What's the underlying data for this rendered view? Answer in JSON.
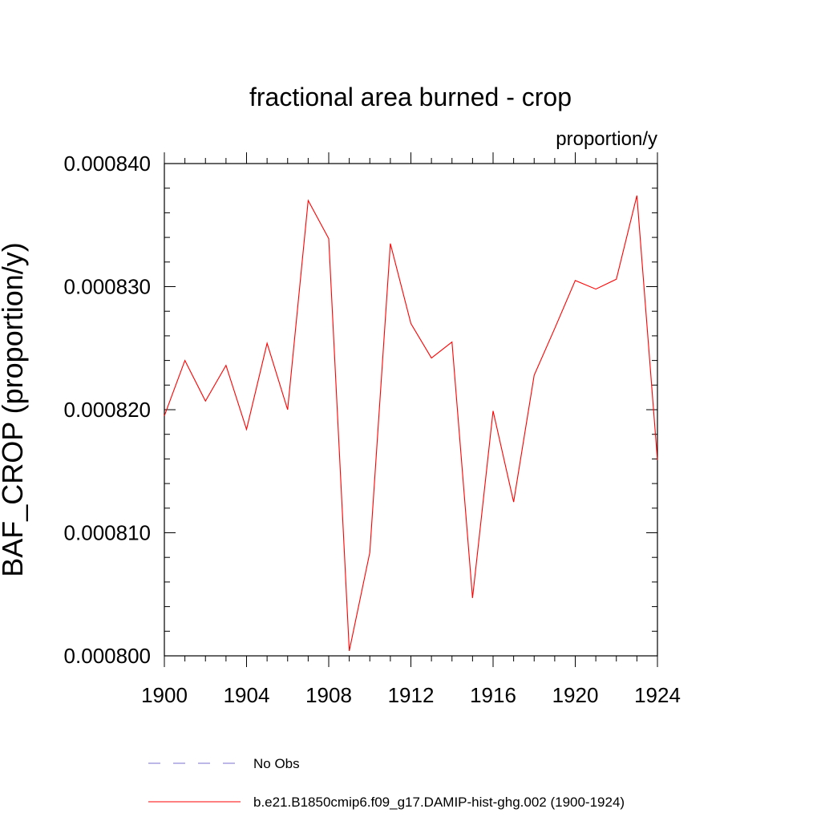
{
  "chart_data": {
    "type": "line",
    "title": "fractional area burned - crop",
    "units_label": "proportion/y",
    "ylabel": "BAF_CROP  (proportion/y)",
    "xlabel": "",
    "xlim": [
      1900,
      1924
    ],
    "ylim": [
      0.0008,
      0.00084
    ],
    "x_ticks": [
      1900,
      1904,
      1908,
      1912,
      1916,
      1920,
      1924
    ],
    "x_tick_labels": [
      "1900",
      "1904",
      "1908",
      "1912",
      "1916",
      "1920",
      "1924"
    ],
    "y_ticks": [
      0.0008,
      0.00081,
      0.00082,
      0.00083,
      0.00084
    ],
    "y_tick_labels": [
      "0.000800",
      "0.000810",
      "0.000820",
      "0.000830",
      "0.000840"
    ],
    "grid": false,
    "legend_position": "bottom",
    "legend": [
      {
        "label": "No Obs",
        "color": "#7b6fcf",
        "dash": "dashed"
      },
      {
        "label": "b.e21.B1850cmip6.f09_g17.DAMIP-hist-ghg.002 (1900-1924)",
        "color": "#ff0000",
        "dash": "solid"
      }
    ],
    "series": [
      {
        "name": "b.e21.B1850cmip6.f09_g17.DAMIP-hist-ghg.002 (1900-1924)",
        "color": "#ff0000",
        "x": [
          1900,
          1901,
          1902,
          1903,
          1904,
          1905,
          1906,
          1907,
          1908,
          1909,
          1910,
          1911,
          1912,
          1913,
          1914,
          1915,
          1916,
          1917,
          1918,
          1919,
          1920,
          1921,
          1922,
          1923,
          1924
        ],
        "values": [
          0.0008195,
          0.000824,
          0.0008207,
          0.0008236,
          0.0008184,
          0.0008254,
          0.00082,
          0.000837,
          0.0008339,
          0.0008004,
          0.0008084,
          0.0008335,
          0.000827,
          0.0008242,
          0.0008255,
          0.0008047,
          0.0008199,
          0.0008125,
          0.0008228,
          0.0008266,
          0.0008305,
          0.0008298,
          0.0008306,
          0.0008374,
          0.0008159
        ]
      }
    ]
  }
}
